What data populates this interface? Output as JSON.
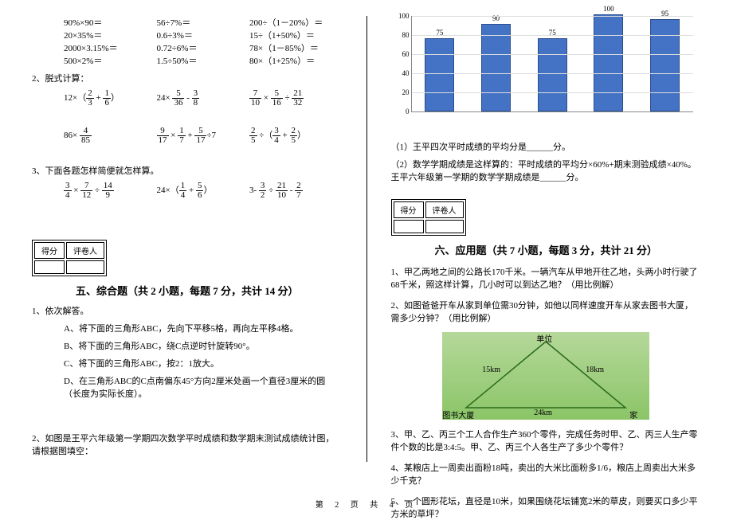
{
  "left": {
    "eq_rows": [
      [
        "90%×90＝",
        "56÷7%＝",
        "200÷（1－20%）＝"
      ],
      [
        "20×35%＝",
        "0.6÷3%＝",
        "15÷（1+50%）＝"
      ],
      [
        "2000×3.15%＝",
        "0.72÷6%＝",
        "78×（1－85%）＝"
      ],
      [
        "500×2%＝",
        "1.5÷50%＝",
        "80×（1+25%）＝"
      ]
    ],
    "q2_title": "2、脱式计算：",
    "q2_r1": [
      {
        "pre": "12×（",
        "f1": [
          "2",
          "3"
        ],
        "mid": " + ",
        "f2": [
          "1",
          "6"
        ],
        "post": "）"
      },
      {
        "pre": "24× ",
        "f1": [
          "5",
          "36"
        ],
        "mid": " - ",
        "f2": [
          "3",
          "8"
        ],
        "post": ""
      },
      {
        "pre": "",
        "f1": [
          "7",
          "10"
        ],
        "mid": " × ",
        "f2": [
          "5",
          "16"
        ],
        "mid2": " ÷ ",
        "f3": [
          "21",
          "32"
        ],
        "post": ""
      }
    ],
    "q2_r2": [
      {
        "pre": "86× ",
        "f1": [
          "4",
          "85"
        ],
        "post": ""
      },
      {
        "pre": "",
        "f1": [
          "9",
          "17"
        ],
        "mid": " × ",
        "f2": [
          "1",
          "7"
        ],
        "mid2": " + ",
        "f3": [
          "5",
          "17"
        ],
        "post": "÷7"
      },
      {
        "pre": "",
        "f1": [
          "2",
          "5"
        ],
        "mid": " ÷（",
        "f2": [
          "3",
          "4"
        ],
        "mid2": " + ",
        "f3": [
          "2",
          "5"
        ],
        "post": "）"
      }
    ],
    "q3_title": "3、下面各题怎样简便就怎样算。",
    "q3_r": [
      {
        "pre": "",
        "f1": [
          "3",
          "4"
        ],
        "mid": " × ",
        "f2": [
          "7",
          "12"
        ],
        "mid2": " ÷ ",
        "f3": [
          "14",
          "9"
        ],
        "post": ""
      },
      {
        "pre": "24×（",
        "f1": [
          "1",
          "4"
        ],
        "mid": " + ",
        "f2": [
          "5",
          "6"
        ],
        "post": "）"
      },
      {
        "pre": "3- ",
        "f1": [
          "3",
          "2"
        ],
        "mid": " ÷ ",
        "f2": [
          "21",
          "10"
        ],
        "mid2": " - ",
        "f3": [
          "2",
          "7"
        ],
        "post": ""
      }
    ],
    "score_label": "得分",
    "reviewer_label": "评卷人",
    "sec5_title": "五、综合题（共 2 小题，每题 7 分，共计 14 分）",
    "q5_1": "1、依次解答。",
    "q5_1a": "A、将下面的三角形ABC，先向下平移5格，再向左平移4格。",
    "q5_1b": "B、将下面的三角形ABC，绕C点逆时针旋转90°。",
    "q5_1c": "C、将下面的三角形ABC，按2：1放大。",
    "q5_1d": "D、在三角形ABC的C点南偏东45°方向2厘米处画一个直径3厘米的圆（长度为实际长度）。",
    "q5_2": "2、如图是王平六年级第一学期四次数学平时成绩和数学期末测试成绩统计图，请根据图填空："
  },
  "chart": {
    "ymax": 100,
    "ystep": 20,
    "bars": [
      {
        "label": "75",
        "v": 75
      },
      {
        "label": "90",
        "v": 90
      },
      {
        "label": "75",
        "v": 75
      },
      {
        "label": "100",
        "v": 100
      },
      {
        "label": "95",
        "v": 95
      }
    ],
    "bar_color": "#4472c4"
  },
  "right": {
    "c1": "（1）王平四次平时成绩的平均分是______分。",
    "c2": "（2）数学学期成绩是这样算的：平时成绩的平均分×60%+期末测验成绩×40%。王平六年级第一学期的数学学期成绩是______分。",
    "score_label": "得分",
    "reviewer_label": "评卷人",
    "sec6_title": "六、应用题（共 7 小题，每题 3 分，共计 21 分）",
    "q1": "1、甲乙两地之间的公路长170千米。一辆汽车从甲地开往乙地，头两小时行驶了68千米，照这样计算，几小时可以到达乙地？（用比例解）",
    "q2": "2、如图爸爸开车从家到单位需30分钟，如他以同样速度开车从家去图书大厦，需多少分钟？（用比例解）",
    "tri": {
      "top": "单位",
      "left": "15km",
      "right": "18km",
      "bl": "图书大厦",
      "br": "家",
      "bottom": "24km"
    },
    "q3": "3、甲、乙、丙三个工人合作生产360个零件，完成任务时甲、乙、丙三人生产零件个数的比是3:4:5。甲、乙、丙三个人各生产了多少个零件？",
    "q4": "4、某粮店上一周卖出面粉18吨，卖出的大米比面粉多1/6，粮店上周卖出大米多少千克？",
    "q5": "5、一个圆形花坛，直径是10米，如果围绕花坛铺宽2米的草皮，则要买口多少平方米的草坪？"
  },
  "footer": "第 2 页 共 4 页"
}
